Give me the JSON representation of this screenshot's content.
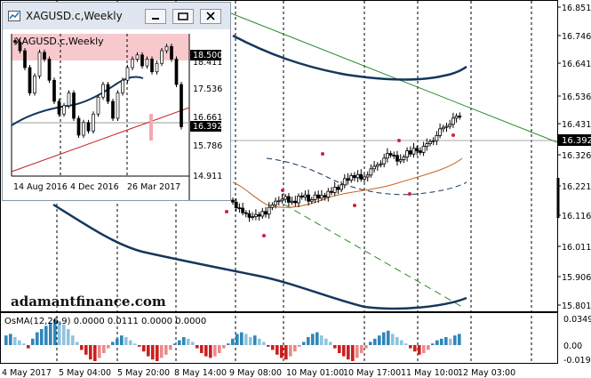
{
  "main_chart": {
    "price_labels": [
      "16.851",
      "16.746",
      "16.641",
      "16.536",
      "16.431",
      "16.326",
      "16.221",
      "16.116",
      "16.011",
      "15.906",
      "15.801"
    ],
    "current_price": "16.392",
    "time_labels": [
      "4 May 2017",
      "5 May 04:00",
      "5 May 20:00",
      "8 May 14:00",
      "9 May 08:00",
      "10 May 01:00",
      "10 May 17:00",
      "11 May 10:00",
      "12 May 03:00"
    ],
    "watermark": "adamantfinance.com"
  },
  "oscillator": {
    "title": "OsMA(12,26,9) 0.0000 0.0111 0.0000 0.0000",
    "scale_labels": [
      "0.0349",
      "0.00",
      "-0.0196"
    ]
  },
  "inset": {
    "window_title": "XAGUSD.c,Weekly",
    "chart_title": "XAGUSD.c,Weekly",
    "price_labels": [
      "18.500",
      "18.411",
      "17.536",
      "16.661",
      "16.392",
      "15.786",
      "14.911"
    ],
    "time_labels": [
      "14 Aug 2016",
      "4 Dec 2016",
      "26 Mar 2017"
    ]
  },
  "colors": {
    "bull_osma": "#2f86b8",
    "bear_osma": "#cc1f1f",
    "ma_line": "#14375c",
    "trendline": "#2e8b2e",
    "price_tag": "#000000"
  }
}
